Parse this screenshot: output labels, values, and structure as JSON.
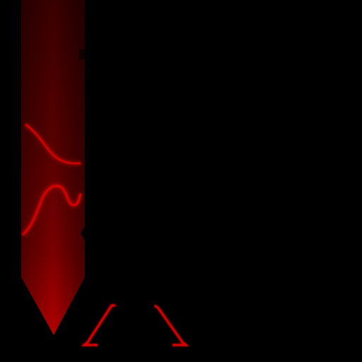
{
  "colors": {
    "background": "#000000",
    "banner_deep": "#3a0000",
    "banner_mid": "#6e0000",
    "banner_bright": "#b30000",
    "accent": "#d40000",
    "glow": "#ff1a1a"
  },
  "graphics": {
    "banner": {
      "icon": "red-banner-graphic"
    },
    "curves": {
      "icon": "glowing-wave-lines"
    },
    "top_bar": {
      "icon": "top-accent-bar"
    },
    "brackets": {
      "icon": "corner-bracket-marks"
    }
  }
}
